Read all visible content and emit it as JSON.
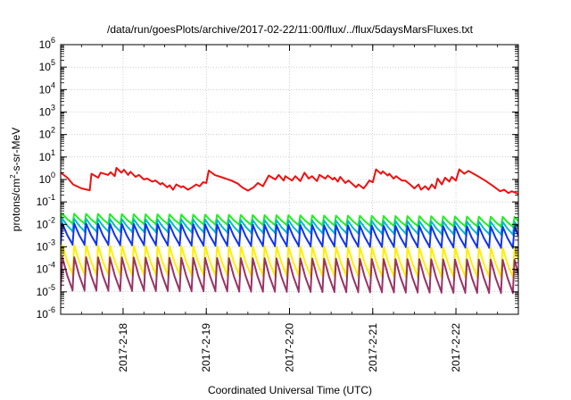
{
  "chart_data": {
    "type": "line",
    "title": "/data/run/goesPlots/archive/2017-02-22/11:00/flux/../flux/5daysMarsFluxes.txt",
    "xlabel": "Coordinated Universal Time (UTC)",
    "ylabel": {
      "base": "protons/cm",
      "sup": "2",
      "rest": "-s-sr-MeV"
    },
    "yscale": "log",
    "ylim_exp": [
      -6,
      6
    ],
    "y_ticks": [
      {
        "base": "10",
        "exp": "-6"
      },
      {
        "base": "10",
        "exp": "-5"
      },
      {
        "base": "10",
        "exp": "-4"
      },
      {
        "base": "10",
        "exp": "-3"
      },
      {
        "base": "10",
        "exp": "-2"
      },
      {
        "base": "10",
        "exp": "-1"
      },
      {
        "base": "10",
        "exp": "0"
      },
      {
        "base": "10",
        "exp": "1"
      },
      {
        "base": "10",
        "exp": "2"
      },
      {
        "base": "10",
        "exp": "3"
      },
      {
        "base": "10",
        "exp": "4"
      },
      {
        "base": "10",
        "exp": "5"
      },
      {
        "base": "10",
        "exp": "6"
      }
    ],
    "xlim_days": [
      17.0,
      22.5
    ],
    "x_ticks": [
      {
        "label": "2017-2-18",
        "day": 17.75
      },
      {
        "label": "2017-2-19",
        "day": 18.75
      },
      {
        "label": "2017-2-20",
        "day": 19.75
      },
      {
        "label": "2017-2-21",
        "day": 20.75
      },
      {
        "label": "2017-2-22",
        "day": 21.75
      }
    ],
    "grid": true,
    "series": [
      {
        "color": "#ee1111",
        "points": [
          [
            17.0,
            2.0
          ],
          [
            17.08,
            1.2
          ],
          [
            17.15,
            0.6
          ],
          [
            17.25,
            0.4
          ],
          [
            17.35,
            0.33
          ],
          [
            17.37,
            1.8
          ],
          [
            17.45,
            1.2
          ],
          [
            17.48,
            2.0
          ],
          [
            17.57,
            1.6
          ],
          [
            17.6,
            2.1
          ],
          [
            17.65,
            1.4
          ],
          [
            17.67,
            3.3
          ],
          [
            17.73,
            2.0
          ],
          [
            17.76,
            2.7
          ],
          [
            17.81,
            1.6
          ],
          [
            17.84,
            2.2
          ],
          [
            17.9,
            1.3
          ],
          [
            17.94,
            1.6
          ],
          [
            18.0,
            1.0
          ],
          [
            18.04,
            1.1
          ],
          [
            18.1,
            0.8
          ],
          [
            18.14,
            0.9
          ],
          [
            18.2,
            0.6
          ],
          [
            18.22,
            0.7
          ],
          [
            18.28,
            0.45
          ],
          [
            18.31,
            0.55
          ],
          [
            18.35,
            0.35
          ],
          [
            18.39,
            0.6
          ],
          [
            18.45,
            0.45
          ],
          [
            18.47,
            0.5
          ],
          [
            18.53,
            0.35
          ],
          [
            18.58,
            0.45
          ],
          [
            18.63,
            0.6
          ],
          [
            18.67,
            0.5
          ],
          [
            18.71,
            0.75
          ],
          [
            18.75,
            0.7
          ],
          [
            18.78,
            2.5
          ],
          [
            18.85,
            1.6
          ],
          [
            18.95,
            1.2
          ],
          [
            19.05,
            0.9
          ],
          [
            19.13,
            0.65
          ],
          [
            19.18,
            0.45
          ],
          [
            19.25,
            0.32
          ],
          [
            19.32,
            0.45
          ],
          [
            19.37,
            0.7
          ],
          [
            19.43,
            0.5
          ],
          [
            19.5,
            1.5
          ],
          [
            19.58,
            1.0
          ],
          [
            19.62,
            1.6
          ],
          [
            19.68,
            0.9
          ],
          [
            19.7,
            1.4
          ],
          [
            19.78,
            0.9
          ],
          [
            19.82,
            1.4
          ],
          [
            19.88,
            0.85
          ],
          [
            19.93,
            2.0
          ],
          [
            19.98,
            1.1
          ],
          [
            20.02,
            1.4
          ],
          [
            20.08,
            0.85
          ],
          [
            20.11,
            1.6
          ],
          [
            20.18,
            1.1
          ],
          [
            20.21,
            1.5
          ],
          [
            20.27,
            1.0
          ],
          [
            20.29,
            1.2
          ],
          [
            20.33,
            0.8
          ],
          [
            20.36,
            1.3
          ],
          [
            20.42,
            0.7
          ],
          [
            20.46,
            0.9
          ],
          [
            20.55,
            0.45
          ],
          [
            20.58,
            0.6
          ],
          [
            20.64,
            0.4
          ],
          [
            20.67,
            0.55
          ],
          [
            20.71,
            0.9
          ],
          [
            20.75,
            0.75
          ],
          [
            20.79,
            2.8
          ],
          [
            20.85,
            1.8
          ],
          [
            20.87,
            2.3
          ],
          [
            20.93,
            1.5
          ],
          [
            20.95,
            1.8
          ],
          [
            21.0,
            1.1
          ],
          [
            21.03,
            1.4
          ],
          [
            21.1,
            0.9
          ],
          [
            21.14,
            0.9
          ],
          [
            21.2,
            0.6
          ],
          [
            21.25,
            0.4
          ],
          [
            21.3,
            0.6
          ],
          [
            21.33,
            0.35
          ],
          [
            21.38,
            0.5
          ],
          [
            21.42,
            0.35
          ],
          [
            21.46,
            0.6
          ],
          [
            21.5,
            0.4
          ],
          [
            21.53,
            1.1
          ],
          [
            21.58,
            0.6
          ],
          [
            21.62,
            1.2
          ],
          [
            21.67,
            0.8
          ],
          [
            21.7,
            1.3
          ],
          [
            21.75,
            0.9
          ],
          [
            21.79,
            2.8
          ],
          [
            21.85,
            1.8
          ],
          [
            21.9,
            2.4
          ],
          [
            22.0,
            1.5
          ],
          [
            22.1,
            0.9
          ],
          [
            22.2,
            0.5
          ],
          [
            22.28,
            0.3
          ],
          [
            22.33,
            0.35
          ],
          [
            22.38,
            0.25
          ],
          [
            22.42,
            0.3
          ],
          [
            22.5,
            0.23
          ]
        ]
      },
      {
        "color": "#22ee22",
        "sawtooth": true,
        "period": 0.143,
        "start": 17.0,
        "end": 22.5,
        "peak": 0.03,
        "trough": 0.011,
        "drift_per_day": -0.06
      },
      {
        "color": "#00bbcc",
        "sawtooth": true,
        "period": 0.143,
        "start": 17.0,
        "end": 22.5,
        "peak": 0.018,
        "trough": 0.005,
        "drift_per_day": -0.06
      },
      {
        "color": "#1133ee",
        "sawtooth": true,
        "period": 0.143,
        "start": 17.0,
        "end": 22.5,
        "peak": 0.011,
        "trough": 0.0013,
        "drift_per_day": -0.06
      },
      {
        "color": "#ffee00",
        "sawtooth": true,
        "period": 0.143,
        "start": 17.0,
        "end": 22.5,
        "peak": 0.0012,
        "trough": 6e-05,
        "drift_per_day": -0.05
      },
      {
        "color": "#993366",
        "sawtooth": true,
        "period": 0.143,
        "start": 17.0,
        "end": 22.5,
        "peak": 0.00035,
        "trough": 1.2e-05,
        "drift_per_day": -0.05
      }
    ]
  }
}
